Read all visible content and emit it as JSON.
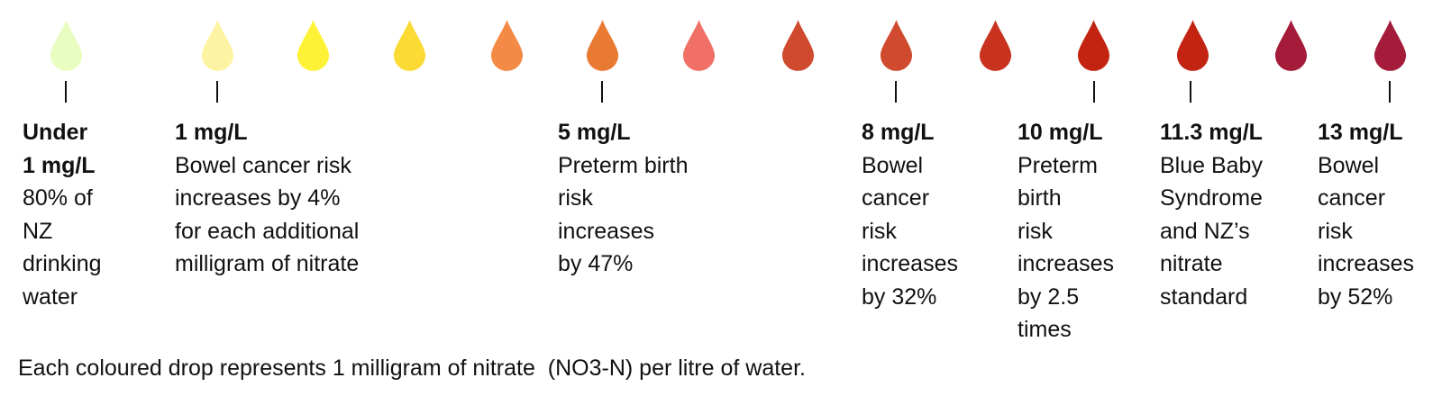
{
  "drops": [
    {
      "color": "#E8FDBF"
    },
    {
      "color": "#FDF4A3"
    },
    {
      "color": "#FEF236"
    },
    {
      "color": "#FADA33"
    },
    {
      "color": "#F38B46"
    },
    {
      "color": "#E87A32"
    },
    {
      "color": "#F07068"
    },
    {
      "color": "#D04A30"
    },
    {
      "color": "#D04A30"
    },
    {
      "color": "#C8321F"
    },
    {
      "color": "#C32412"
    },
    {
      "color": "#C32412"
    },
    {
      "color": "#A41C3A"
    },
    {
      "color": "#A41C3A"
    }
  ],
  "markers": [
    {
      "heading": [
        "Under",
        "1 mg/L"
      ],
      "body": [
        "80% of",
        "NZ",
        "drinking",
        "water"
      ]
    },
    {
      "heading": [
        "1 mg/L"
      ],
      "body": [
        "Bowel cancer risk",
        "increases by 4%",
        "for each additional",
        "milligram of nitrate"
      ]
    },
    {
      "heading": [
        "5 mg/L"
      ],
      "body": [
        "Preterm birth",
        "risk",
        "increases",
        "by 47%"
      ]
    },
    {
      "heading": [
        "8 mg/L"
      ],
      "body": [
        "Bowel",
        "cancer",
        "risk",
        "increases",
        "by 32%"
      ]
    },
    {
      "heading": [
        "10 mg/L"
      ],
      "body": [
        "Preterm",
        "birth",
        "risk",
        "increases",
        "by 2.5",
        "times"
      ]
    },
    {
      "heading": [
        "11.3 mg/L"
      ],
      "body": [
        "Blue Baby",
        "Syndrome",
        "and NZ’s",
        "nitrate",
        "standard"
      ]
    },
    {
      "heading": [
        "13 mg/L"
      ],
      "body": [
        "Bowel",
        "cancer",
        "risk",
        "increases",
        "by 52%"
      ]
    }
  ],
  "footer": "Each coloured drop represents 1 milligram of nitrate  (NO3-N) per litre of water."
}
